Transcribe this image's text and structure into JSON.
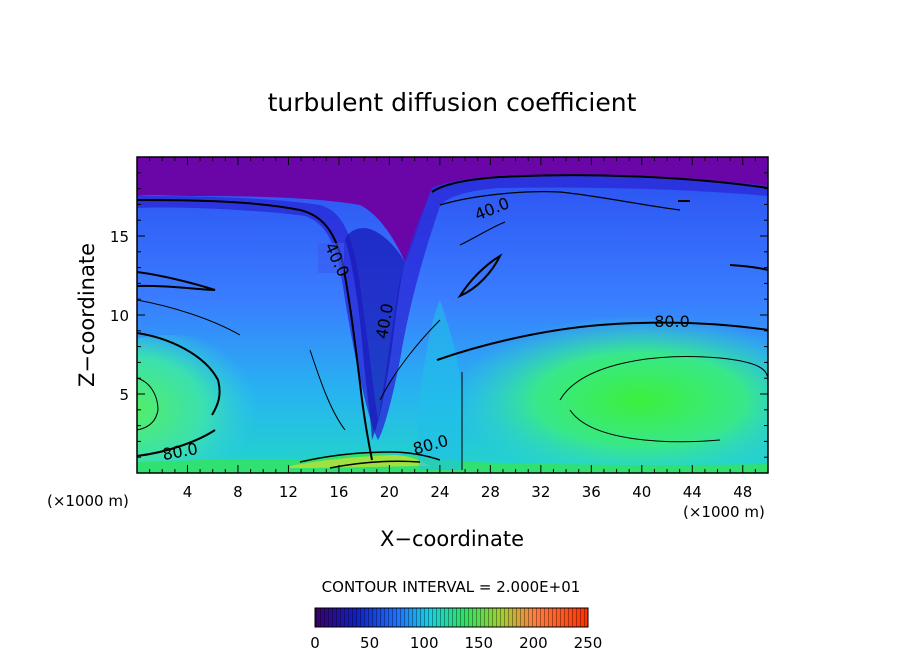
{
  "chart_data": {
    "type": "heatmap",
    "title": "turbulent diffusion coefficient",
    "xlabel": "X−coordinate",
    "ylabel": "Z−coordinate",
    "x_unit_left": "(×1000 m)",
    "x_unit_right": "(×1000 m)",
    "xlim": [
      0,
      50
    ],
    "ylim": [
      0,
      20
    ],
    "x_ticks": [
      4,
      8,
      12,
      16,
      20,
      24,
      28,
      32,
      36,
      40,
      44,
      48
    ],
    "y_ticks": [
      5,
      10,
      15
    ],
    "contour_interval_text": "CONTOUR INTERVAL = 2.000E+01",
    "contour_labels": [
      {
        "text": "40.0",
        "x": 15.8,
        "z": 13.5
      },
      {
        "text": "40.0",
        "x": 20.0,
        "z": 9.5
      },
      {
        "text": "40.0",
        "x": 28.0,
        "z": 16.5
      },
      {
        "text": "80.0",
        "x": 42.0,
        "z": 9.5
      },
      {
        "text": "80.0",
        "x": 3.0,
        "z": 1.3
      },
      {
        "text": "80.0",
        "x": 23.0,
        "z": 1.5
      }
    ],
    "colorbar": {
      "min": 0,
      "max": 250,
      "ticks": [
        "0",
        "50",
        "100",
        "150",
        "200",
        "250"
      ]
    },
    "colors": {
      "low": "#6a00a8",
      "mid_blue": "#1e6cff",
      "cyan": "#18d2e0",
      "green": "#32ee32",
      "high": "#ff3000"
    }
  }
}
